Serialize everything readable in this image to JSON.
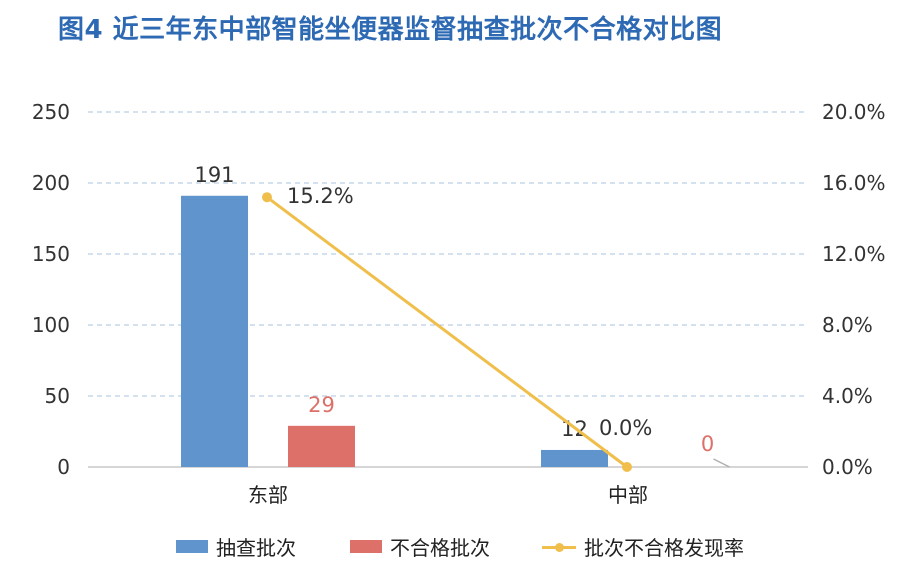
{
  "title": "图4  近三年东中部智能坐便器监督抽查批次不合格对比图",
  "chart_data": {
    "type": "bar",
    "categories": [
      "东部",
      "中部"
    ],
    "series": [
      {
        "name": "抽查批次",
        "type": "bar",
        "axis": "left",
        "color": "#5f94cc",
        "values": [
          191,
          12
        ],
        "labels": [
          "191",
          "12"
        ],
        "label_color": "#333333"
      },
      {
        "name": "不合格批次",
        "type": "bar",
        "axis": "left",
        "color": "#dd7068",
        "values": [
          29,
          0
        ],
        "labels": [
          "29",
          "0"
        ],
        "label_color": "#dd7068"
      },
      {
        "name": "批次不合格发现率",
        "type": "line",
        "axis": "right",
        "color": "#f0be4b",
        "values": [
          15.2,
          0.0
        ],
        "labels": [
          "15.2%",
          "0.0%"
        ],
        "label_color": "#333333"
      }
    ],
    "y_left": {
      "min": 0,
      "max": 250,
      "ticks": [
        "0",
        "50",
        "100",
        "150",
        "200",
        "250"
      ]
    },
    "y_right": {
      "min": 0,
      "max": 20,
      "ticks": [
        "0.0%",
        "4.0%",
        "8.0%",
        "12.0%",
        "16.0%",
        "20.0%"
      ]
    },
    "grid": true,
    "legend_position": "bottom"
  }
}
